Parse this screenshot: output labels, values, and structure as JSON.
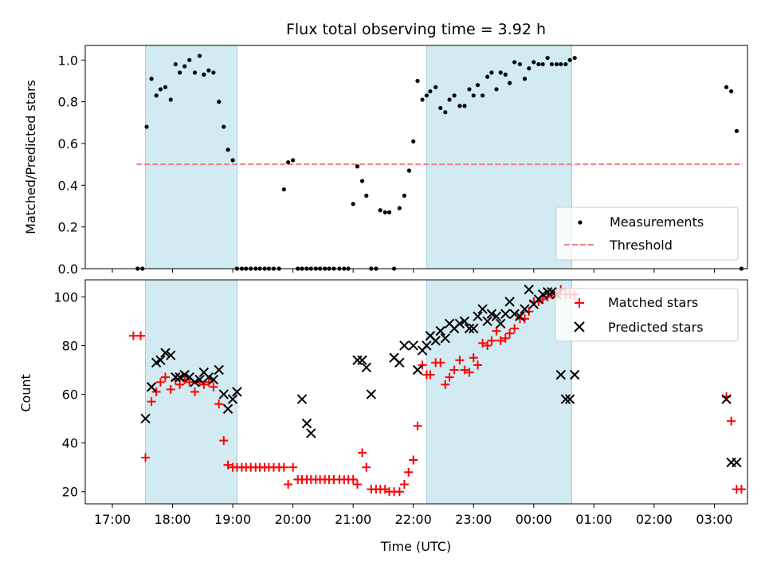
{
  "chart_data": [
    {
      "type": "scatter",
      "title": "Flux total observing time = 3.92 h",
      "xlabel": "",
      "ylabel": "Matched/Predicted stars",
      "ylim": [
        0,
        1.07
      ],
      "yticks": [
        0.0,
        0.2,
        0.4,
        0.6,
        0.8,
        1.0
      ],
      "ytick_labels": [
        "0.0",
        "0.2",
        "0.4",
        "0.6",
        "0.8",
        "1.0"
      ],
      "x_axis": "hours since 17:00 UTC on the shared time axis",
      "xlim": [
        -0.45,
        10.55
      ],
      "shaded_intervals": [
        [
          0.55,
          2.07
        ],
        [
          5.22,
          7.63
        ]
      ],
      "shade_color": "#add8e6",
      "threshold": {
        "name": "Threshold",
        "value": 0.5,
        "x_range": [
          0.4,
          10.47
        ],
        "color": "#f08080",
        "style": "dashed"
      },
      "legend": {
        "placement": "lower right",
        "entries": [
          "Measurements",
          "Threshold"
        ]
      },
      "series": [
        {
          "name": "Measurements",
          "color": "#000000",
          "marker": "dot",
          "x": [
            0.42,
            0.5,
            0.57,
            0.65,
            0.73,
            0.8,
            0.88,
            0.97,
            1.05,
            1.12,
            1.2,
            1.28,
            1.37,
            1.45,
            1.52,
            1.6,
            1.68,
            1.77,
            1.85,
            1.92,
            2.0,
            2.07,
            2.15,
            2.22,
            2.3,
            2.38,
            2.45,
            2.53,
            2.6,
            2.68,
            2.77,
            2.85,
            2.92,
            3.0,
            3.08,
            3.15,
            3.23,
            3.3,
            3.38,
            3.45,
            3.53,
            3.6,
            3.68,
            3.77,
            3.85,
            3.92,
            4.0,
            4.07,
            4.15,
            4.22,
            4.3,
            4.38,
            4.45,
            4.53,
            4.6,
            4.68,
            4.77,
            4.85,
            4.93,
            5.0,
            5.07,
            5.15,
            5.22,
            5.28,
            5.37,
            5.45,
            5.53,
            5.6,
            5.68,
            5.77,
            5.85,
            5.93,
            6.0,
            6.07,
            6.15,
            6.23,
            6.3,
            6.38,
            6.45,
            6.53,
            6.6,
            6.68,
            6.77,
            6.85,
            6.92,
            7.0,
            7.08,
            7.15,
            7.23,
            7.3,
            7.38,
            7.45,
            7.53,
            7.6,
            7.68,
            10.2,
            10.28,
            10.37,
            10.45
          ],
          "y": [
            0.0,
            0.0,
            0.68,
            0.91,
            0.83,
            0.86,
            0.87,
            0.81,
            0.98,
            0.94,
            0.97,
            1.0,
            0.94,
            1.02,
            0.93,
            0.95,
            0.94,
            0.8,
            0.68,
            0.57,
            0.52,
            0.0,
            0.0,
            0.0,
            0.0,
            0.0,
            0.0,
            0.0,
            0.0,
            0.0,
            0.0,
            0.38,
            0.51,
            0.52,
            0.0,
            0.0,
            0.0,
            0.0,
            0.0,
            0.0,
            0.0,
            0.0,
            0.0,
            0.0,
            0.0,
            0.0,
            0.31,
            0.49,
            0.42,
            0.35,
            0.0,
            0.0,
            0.28,
            0.27,
            0.27,
            0.0,
            0.29,
            0.35,
            0.47,
            0.61,
            0.9,
            0.81,
            0.83,
            0.85,
            0.87,
            0.77,
            0.75,
            0.81,
            0.83,
            0.78,
            0.78,
            0.86,
            0.83,
            0.88,
            0.83,
            0.92,
            0.94,
            0.86,
            0.94,
            0.93,
            0.89,
            0.99,
            0.98,
            0.91,
            0.96,
            0.99,
            0.98,
            0.98,
            1.01,
            0.98,
            0.98,
            0.98,
            0.98,
            1.0,
            1.01,
            0.87,
            0.85,
            0.66,
            0.0
          ]
        }
      ]
    },
    {
      "type": "scatter",
      "title": "",
      "xlabel": "Time (UTC)",
      "ylabel": "Count",
      "ylim": [
        15,
        107
      ],
      "yticks": [
        20,
        40,
        60,
        80,
        100
      ],
      "ytick_labels": [
        "20",
        "40",
        "60",
        "80",
        "100"
      ],
      "xticks": [
        0,
        1,
        2,
        3,
        4,
        5,
        6,
        7,
        8,
        9,
        10
      ],
      "xtick_labels": [
        "17:00",
        "18:00",
        "19:00",
        "20:00",
        "21:00",
        "22:00",
        "23:00",
        "00:00",
        "01:00",
        "02:00",
        "03:00"
      ],
      "xlim": [
        -0.45,
        10.55
      ],
      "shaded_intervals": [
        [
          0.55,
          2.07
        ],
        [
          5.22,
          7.63
        ]
      ],
      "shade_color": "#add8e6",
      "legend": {
        "placement": "upper right",
        "entries": [
          "Matched stars",
          "Predicted stars"
        ]
      },
      "series": [
        {
          "name": "Matched stars",
          "color": "#ff0000",
          "marker": "plus",
          "x": [
            0.35,
            0.47,
            0.55,
            0.65,
            0.73,
            0.8,
            0.88,
            0.97,
            1.05,
            1.12,
            1.2,
            1.28,
            1.37,
            1.45,
            1.52,
            1.6,
            1.68,
            1.77,
            1.85,
            1.92,
            2.0,
            2.07,
            2.15,
            2.22,
            2.3,
            2.38,
            2.45,
            2.53,
            2.6,
            2.68,
            2.77,
            2.85,
            2.92,
            3.0,
            3.08,
            3.15,
            3.23,
            3.3,
            3.38,
            3.45,
            3.53,
            3.6,
            3.68,
            3.77,
            3.85,
            3.92,
            4.0,
            4.07,
            4.15,
            4.22,
            4.3,
            4.38,
            4.45,
            4.53,
            4.6,
            4.68,
            4.77,
            4.85,
            4.92,
            5.0,
            5.07,
            5.15,
            5.22,
            5.28,
            5.37,
            5.45,
            5.53,
            5.6,
            5.68,
            5.77,
            5.85,
            5.93,
            6.0,
            6.07,
            6.15,
            6.23,
            6.3,
            6.38,
            6.45,
            6.53,
            6.6,
            6.68,
            6.77,
            6.85,
            6.92,
            7.0,
            7.08,
            7.15,
            7.23,
            7.3,
            7.38,
            7.45,
            7.53,
            7.6,
            7.68,
            10.2,
            10.28,
            10.37,
            10.45
          ],
          "y": [
            84,
            84,
            34,
            57,
            61,
            65,
            67,
            62,
            66,
            64,
            66,
            65,
            61,
            65,
            64,
            65,
            63,
            56,
            41,
            31,
            30,
            30,
            30,
            30,
            30,
            30,
            30,
            30,
            30,
            30,
            30,
            30,
            23,
            30,
            25,
            25,
            25,
            25,
            25,
            25,
            25,
            25,
            25,
            25,
            25,
            25,
            25,
            23,
            36,
            30,
            21,
            21,
            21,
            21,
            20,
            20,
            20,
            23,
            28,
            33,
            47,
            72,
            68,
            68,
            73,
            73,
            64,
            67,
            70,
            74,
            70,
            69,
            75,
            72,
            81,
            80,
            82,
            86,
            82,
            83,
            85,
            87,
            91,
            91,
            94,
            98,
            98,
            99,
            100,
            101,
            101,
            103,
            101,
            101,
            101,
            59,
            49,
            21,
            21
          ]
        },
        {
          "name": "Predicted stars",
          "color": "#000000",
          "marker": "x",
          "x": [
            0.55,
            0.65,
            0.73,
            0.8,
            0.88,
            0.97,
            1.05,
            1.12,
            1.2,
            1.28,
            1.37,
            1.45,
            1.52,
            1.6,
            1.68,
            1.77,
            1.85,
            1.92,
            2.0,
            2.07,
            3.15,
            3.23,
            3.3,
            4.07,
            4.15,
            4.22,
            4.3,
            4.68,
            4.77,
            4.85,
            5.0,
            5.07,
            5.15,
            5.22,
            5.28,
            5.37,
            5.45,
            5.53,
            5.6,
            5.68,
            5.77,
            5.85,
            5.93,
            6.0,
            6.07,
            6.15,
            6.23,
            6.3,
            6.38,
            6.45,
            6.53,
            6.6,
            6.68,
            6.77,
            6.85,
            6.92,
            7.0,
            7.08,
            7.15,
            7.23,
            7.3,
            7.38,
            7.45,
            7.53,
            7.6,
            7.68,
            10.2,
            10.28,
            10.37
          ],
          "y": [
            50,
            63,
            73,
            74,
            77,
            76,
            67,
            67,
            68,
            67,
            65,
            66,
            69,
            67,
            66,
            70,
            60,
            54,
            58,
            61,
            58,
            48,
            44,
            74,
            74,
            71,
            60,
            75,
            73,
            80,
            80,
            70,
            78,
            80,
            84,
            82,
            86,
            83,
            89,
            87,
            89,
            90,
            87,
            87,
            92,
            95,
            90,
            93,
            92,
            89,
            93,
            98,
            93,
            92,
            95,
            103,
            97,
            99,
            101,
            102,
            102,
            101,
            68,
            58,
            58,
            68,
            58,
            32,
            32
          ]
        }
      ]
    }
  ]
}
